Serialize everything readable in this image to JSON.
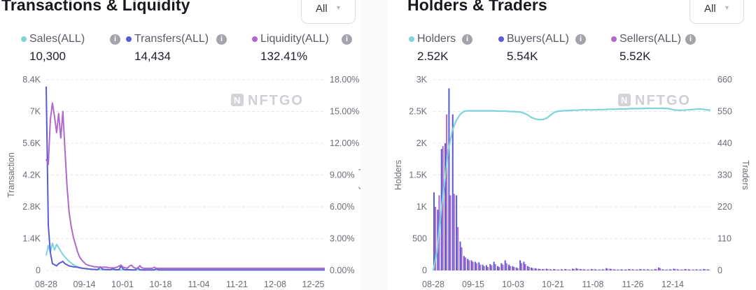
{
  "colors": {
    "sales": "#7fd3da",
    "transfers": "#5a5cd6",
    "liquidity": "#b068cc",
    "holders": "#7fd3da",
    "buyers": "#5a5cd6",
    "sellers": "#b068cc",
    "grid": "#e6e6ea"
  },
  "watermark": "NFTGO",
  "left": {
    "title": "Transactions & Liquidity",
    "dropdown": "All",
    "legend": [
      {
        "label": "Sales(ALL)",
        "value": "10,300",
        "icon": "info-icon"
      },
      {
        "label": "Transfers(ALL)",
        "value": "14,434",
        "icon": "info-icon"
      },
      {
        "label": "Liquidity(ALL)",
        "value": "132.41%",
        "icon": "info-icon"
      }
    ]
  },
  "right": {
    "title": "Holders & Traders",
    "dropdown": "All",
    "legend": [
      {
        "label": "Holders",
        "value": "2.52K",
        "icon": "info-icon"
      },
      {
        "label": "Buyers(ALL)",
        "value": "5.54K",
        "icon": "info-icon"
      },
      {
        "label": "Sellers(ALL)",
        "value": "5.52K",
        "icon": "info-icon"
      }
    ]
  },
  "chart_data": [
    {
      "type": "line",
      "title": "Transactions & Liquidity",
      "xlabel": "",
      "ylabel": "Transaction",
      "y2label": "Liquidity",
      "ylim": [
        0,
        8400
      ],
      "y2lim": [
        0,
        18
      ],
      "yticks": [
        "0",
        "1.4K",
        "2.8K",
        "4.2K",
        "5.6K",
        "7K",
        "8.4K"
      ],
      "y2ticks": [
        "0.00%",
        "3.00%",
        "6.00%",
        "9.00%",
        "12.00%",
        "15.00%",
        "18.00%"
      ],
      "xticks": [
        "08-28",
        "09-14",
        "10-01",
        "10-18",
        "11-04",
        "11-21",
        "12-08",
        "12-25"
      ],
      "series": [
        {
          "name": "Sales(ALL)",
          "axis": "left",
          "values": [
            650,
            1100,
            800,
            1200,
            900,
            1150,
            1000,
            850,
            700,
            600,
            500,
            400,
            330,
            260,
            200,
            160,
            130,
            110,
            90,
            75,
            65,
            55,
            50,
            45,
            40,
            40,
            38,
            35,
            34,
            32,
            30,
            30,
            28,
            27,
            26,
            25,
            25,
            24,
            24,
            23,
            23,
            22,
            22,
            22,
            21,
            21,
            20,
            20,
            20,
            20,
            20,
            20,
            20,
            20,
            20,
            20,
            20,
            20,
            20,
            20,
            20,
            20,
            20,
            20,
            20,
            20,
            20,
            20,
            20,
            20,
            20,
            20,
            20,
            20,
            20,
            20,
            20,
            20,
            20,
            20,
            20,
            20,
            20,
            20,
            20,
            20,
            20,
            20,
            20,
            20,
            20,
            20,
            20,
            20,
            20,
            20,
            20,
            20,
            20,
            20,
            20,
            20,
            20,
            20,
            20,
            20,
            20,
            20,
            20,
            20,
            20,
            20,
            20,
            20,
            20,
            20,
            20,
            20,
            20,
            20,
            20,
            20,
            20,
            20,
            20,
            20,
            20,
            20,
            20,
            20,
            20,
            20,
            20,
            20,
            20
          ]
        },
        {
          "name": "Transfers(ALL)",
          "axis": "left",
          "values": [
            8100,
            2000,
            800,
            300,
            250,
            200,
            300,
            350,
            400,
            300,
            250,
            200,
            180,
            160,
            150,
            140,
            120,
            100,
            90,
            80,
            70,
            60,
            50,
            45,
            40,
            40,
            160,
            60,
            40,
            40,
            35,
            30,
            80,
            40,
            30,
            30,
            200,
            60,
            30,
            30,
            30,
            25,
            25,
            25,
            120,
            30,
            25,
            25,
            25,
            25,
            25,
            25,
            25,
            80,
            25,
            25,
            25,
            25,
            25,
            25,
            25,
            25,
            25,
            25,
            25,
            25,
            25,
            25,
            25,
            25,
            25,
            25,
            25,
            25,
            25,
            25,
            25,
            25,
            25,
            25,
            25,
            25,
            25,
            25,
            25,
            25,
            25,
            25,
            25,
            25,
            25,
            25,
            25,
            25,
            25,
            25,
            25,
            25,
            25,
            25,
            25,
            25,
            25,
            25,
            25,
            25,
            25,
            25,
            25,
            25,
            25,
            25,
            25,
            25,
            25,
            25,
            25,
            25,
            25,
            25,
            25,
            25,
            25,
            25,
            25,
            25,
            25,
            25,
            25,
            25,
            25,
            25,
            25,
            25,
            25
          ]
        },
        {
          "name": "Liquidity(ALL)",
          "axis": "right",
          "values": [
            10.5,
            10.0,
            14.2,
            15.8,
            14.5,
            13.0,
            14.8,
            12.5,
            15.0,
            11.5,
            8.0,
            5.5,
            4.2,
            3.2,
            2.5,
            1.8,
            1.3,
            1.0,
            0.8,
            0.6,
            0.5,
            0.45,
            0.4,
            0.35,
            0.35,
            0.3,
            0.3,
            0.3,
            0.3,
            0.3,
            0.25,
            0.25,
            0.25,
            0.25,
            0.3,
            0.4,
            0.5,
            0.3,
            0.25,
            0.2,
            0.4,
            0.5,
            0.3,
            0.2,
            0.2,
            0.45,
            0.25,
            0.2,
            0.2,
            0.2,
            0.2,
            0.2,
            0.3,
            0.2,
            0.2,
            0.2,
            0.2,
            0.2,
            0.2,
            0.2,
            0.2,
            0.2,
            0.2,
            0.2,
            0.2,
            0.2,
            0.2,
            0.2,
            0.2,
            0.2,
            0.2,
            0.2,
            0.2,
            0.2,
            0.2,
            0.2,
            0.2,
            0.2,
            0.2,
            0.2,
            0.2,
            0.2,
            0.2,
            0.2,
            0.2,
            0.2,
            0.2,
            0.2,
            0.2,
            0.2,
            0.2,
            0.2,
            0.2,
            0.2,
            0.2,
            0.2,
            0.2,
            0.2,
            0.2,
            0.2,
            0.2,
            0.2,
            0.2,
            0.2,
            0.2,
            0.2,
            0.2,
            0.2,
            0.2,
            0.2,
            0.2,
            0.2,
            0.2,
            0.2,
            0.2,
            0.2,
            0.2,
            0.2,
            0.2,
            0.2,
            0.2,
            0.2,
            0.2,
            0.2,
            0.2,
            0.2,
            0.2,
            0.2,
            0.2,
            0.2,
            0.2,
            0.2,
            0.2,
            0.2,
            0.2
          ]
        }
      ]
    },
    {
      "type": "bar",
      "title": "Holders & Traders",
      "xlabel": "",
      "ylabel": "Holders",
      "y2label": "Traders",
      "ylim": [
        0,
        3000
      ],
      "y2lim": [
        0,
        660
      ],
      "yticks": [
        "0",
        "500",
        "1K",
        "1.5K",
        "2K",
        "2.5K",
        "3K"
      ],
      "y2ticks": [
        "0",
        "110",
        "220",
        "330",
        "440",
        "550",
        "660"
      ],
      "xticks": [
        "08-28",
        "09-15",
        "10-03",
        "10-21",
        "11-08",
        "11-26",
        "12-14"
      ],
      "series": [
        {
          "name": "Holders",
          "axis": "left",
          "render": "line",
          "values": [
            0,
            300,
            900,
            1400,
            1900,
            2200,
            2350,
            2450,
            2500,
            2510,
            2510,
            2510,
            2510,
            2510,
            2510,
            2510,
            2510,
            2505,
            2505,
            2505,
            2500,
            2500,
            2495,
            2490,
            2470,
            2440,
            2400,
            2380,
            2370,
            2375,
            2400,
            2450,
            2490,
            2505,
            2510,
            2515,
            2515,
            2520,
            2520,
            2525,
            2525,
            2525,
            2525,
            2528,
            2530,
            2530,
            2535,
            2535,
            2535,
            2540,
            2540,
            2540,
            2545,
            2545,
            2545,
            2545,
            2550,
            2550,
            2550,
            2550,
            2550,
            2548,
            2545,
            2530,
            2520,
            2520,
            2520,
            2525,
            2530,
            2535,
            2540,
            2535,
            2525,
            2520
          ]
        },
        {
          "name": "Buyers(ALL)",
          "axis": "right",
          "render": "bar",
          "values": [
            270,
            210,
            420,
            440,
            630,
            540,
            260,
            100,
            50,
            40,
            35,
            30,
            28,
            20,
            18,
            22,
            30,
            15,
            25,
            35,
            20,
            15,
            10,
            35,
            30,
            15,
            10,
            8,
            6,
            5,
            6,
            4,
            5,
            3,
            4,
            5,
            3,
            6,
            8,
            5,
            4,
            3,
            5,
            4,
            3,
            4,
            8,
            6,
            4,
            3,
            4,
            3,
            5,
            4,
            3,
            5,
            4,
            4,
            3,
            5,
            10,
            4,
            3,
            4,
            6,
            4,
            3,
            5,
            4,
            3,
            4,
            3,
            5,
            4
          ]
        },
        {
          "name": "Sellers(ALL)",
          "axis": "right",
          "render": "bar",
          "values": [
            220,
            260,
            430,
            540,
            260,
            265,
            150,
            80,
            45,
            35,
            30,
            25,
            20,
            15,
            12,
            18,
            22,
            12,
            20,
            25,
            15,
            12,
            8,
            25,
            22,
            12,
            8,
            6,
            5,
            4,
            5,
            3,
            4,
            3,
            3,
            4,
            3,
            5,
            6,
            4,
            3,
            3,
            4,
            3,
            3,
            3,
            6,
            5,
            3,
            3,
            3,
            3,
            4,
            3,
            3,
            4,
            3,
            3,
            3,
            4,
            8,
            3,
            3,
            3,
            5,
            3,
            3,
            4,
            3,
            3,
            3,
            3,
            4,
            3
          ]
        }
      ]
    }
  ]
}
